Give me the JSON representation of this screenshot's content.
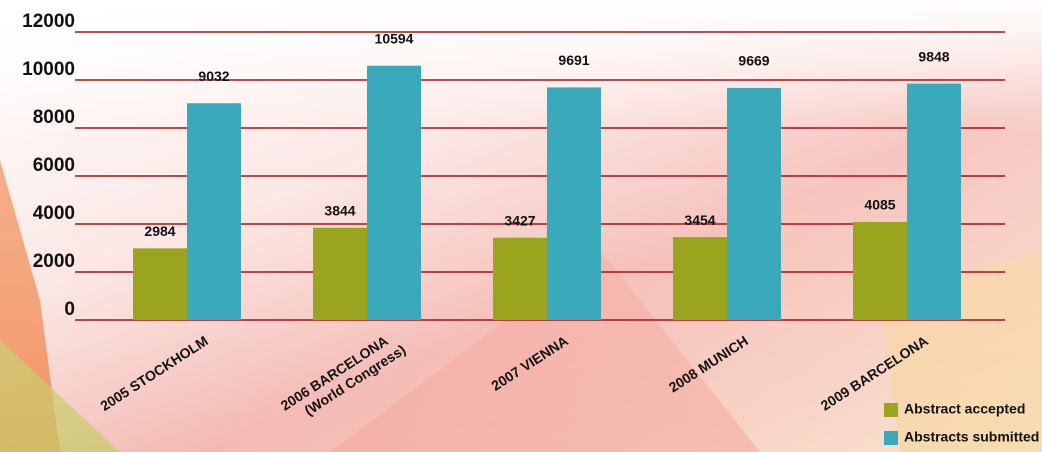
{
  "chart_data": {
    "type": "bar",
    "categories": [
      "2005 STOCKHOLM",
      "2006 BARCELONA\n(World Congress)",
      "2007 VIENNA",
      "2008 MUNICH",
      "2009 BARCELONA"
    ],
    "series": [
      {
        "name": "Abstract accepted",
        "color": "#9aa41f",
        "values": [
          2984,
          3844,
          3427,
          3454,
          4085
        ]
      },
      {
        "name": "Abstracts submitted",
        "color": "#3ba9bc",
        "values": [
          9032,
          10594,
          9691,
          9669,
          9848
        ]
      }
    ],
    "ylim": [
      0,
      12000
    ],
    "yticks": [
      0,
      2000,
      4000,
      6000,
      8000,
      10000,
      12000
    ],
    "grid": true,
    "legend": "bottom-right"
  }
}
